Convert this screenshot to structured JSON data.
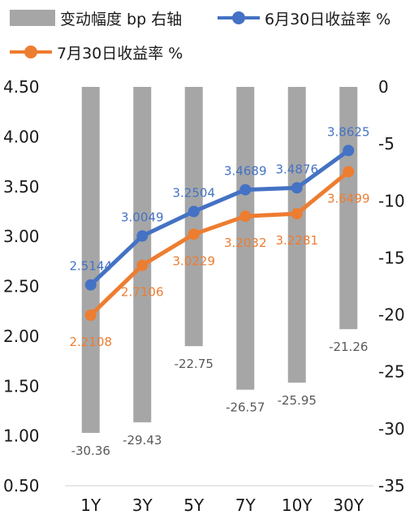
{
  "chart_data": {
    "type": "bar",
    "categories": [
      "1Y",
      "3Y",
      "5Y",
      "7Y",
      "10Y",
      "30Y"
    ],
    "series": [
      {
        "name": "变动幅度 bp 右轴",
        "type": "bar",
        "axis": "right",
        "color": "#a6a6a6",
        "values": [
          -30.36,
          -29.43,
          -22.75,
          -26.57,
          -25.95,
          -21.26
        ],
        "labels": [
          "-30.36",
          "-29.43",
          "-22.75",
          "-26.57",
          "-25.95",
          "-21.26"
        ],
        "label_color": "#595959"
      },
      {
        "name": "6月30日收益率 %",
        "type": "line",
        "axis": "left",
        "color": "#4472c4",
        "values": [
          2.5144,
          3.0049,
          3.2504,
          3.4689,
          3.4876,
          3.8625
        ],
        "labels": [
          "2.5144",
          "3.0049",
          "3.2504",
          "3.4689",
          "3.4876",
          "3.8625"
        ]
      },
      {
        "name": "7月30日收益率 %",
        "type": "line",
        "axis": "left",
        "color": "#ed7d31",
        "values": [
          2.2108,
          2.7106,
          3.0229,
          3.2032,
          3.2281,
          3.6499
        ],
        "labels": [
          "2.2108",
          "2.7106",
          "3.0229",
          "3.2032",
          "3.2281",
          "3.6499"
        ]
      }
    ],
    "left_axis": {
      "ylim": [
        0.5,
        4.5
      ],
      "ticks": [
        4.5,
        4.0,
        3.5,
        3.0,
        2.5,
        2.0,
        1.5,
        1.0,
        0.5
      ],
      "tick_labels": [
        "4.50",
        "4.00",
        "3.50",
        "3.00",
        "2.50",
        "2.00",
        "1.50",
        "1.00",
        "0.50"
      ]
    },
    "right_axis": {
      "ylim": [
        -35,
        0
      ],
      "ticks": [
        0,
        -5,
        -10,
        -15,
        -20,
        -25,
        -30,
        -35
      ],
      "tick_labels": [
        "0",
        "-5",
        "-10",
        "-15",
        "-20",
        "-25",
        "-30",
        "-35"
      ]
    },
    "grid": false,
    "legend_position": "top"
  }
}
